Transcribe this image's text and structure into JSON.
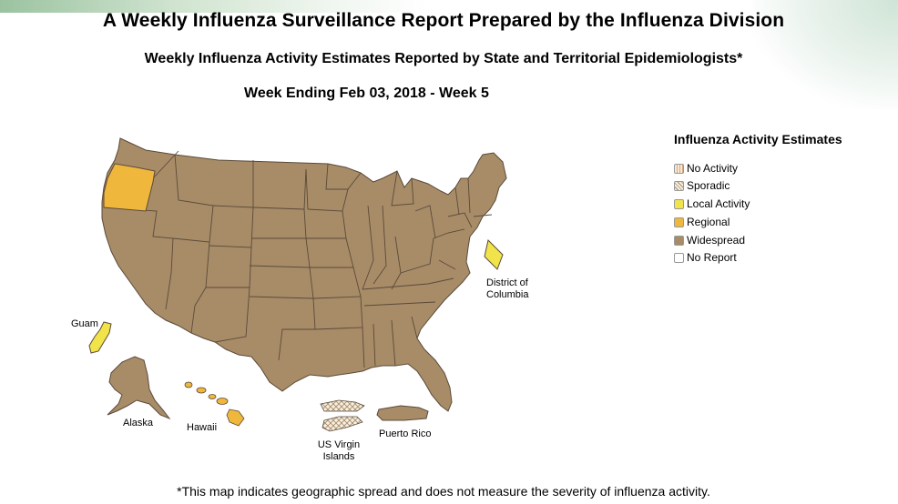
{
  "header": {
    "title": "A Weekly Influenza Surveillance Report Prepared by the Influenza Division",
    "subtitle": "Weekly Influenza Activity Estimates Reported by State and Territorial Epidemiologists*",
    "week": "Week Ending Feb 03, 2018 - Week 5"
  },
  "legend": {
    "title": "Influenza Activity Estimates",
    "items": [
      {
        "label": "No Activity",
        "color": "#f7e9d8",
        "pattern": "no-activity-hatch"
      },
      {
        "label": "Sporadic",
        "color": "#efe4d0",
        "pattern": "sporadic-crosshatch"
      },
      {
        "label": "Local Activity",
        "color": "#f0e44a",
        "pattern": "solid"
      },
      {
        "label": "Regional",
        "color": "#f0b73d",
        "pattern": "solid"
      },
      {
        "label": "Widespread",
        "color": "#a88c68",
        "pattern": "solid"
      },
      {
        "label": "No Report",
        "color": "#ffffff",
        "pattern": "solid"
      }
    ]
  },
  "map": {
    "colors": {
      "widespread": "#a88c68",
      "regional": "#f0b73d",
      "local": "#f0e44a",
      "border": "#5a4a38"
    },
    "regions": [
      {
        "name": "Oregon",
        "activity": "Regional"
      },
      {
        "name": "Hawaii",
        "activity": "Regional"
      },
      {
        "name": "Guam",
        "activity": "Local Activity"
      },
      {
        "name": "District of Columbia",
        "activity": "Local Activity"
      },
      {
        "name": "US Virgin Islands",
        "activity": "Sporadic"
      },
      {
        "name": "Puerto Rico",
        "activity": "Widespread"
      },
      {
        "name": "Alaska",
        "activity": "Widespread"
      },
      {
        "name": "Continental US (other states)",
        "activity": "Widespread"
      }
    ],
    "labels": {
      "guam": "Guam",
      "alaska": "Alaska",
      "hawaii": "Hawaii",
      "usvi_line1": "US Virgin",
      "usvi_line2": "Islands",
      "puerto_rico": "Puerto Rico",
      "dc_line1": "District of",
      "dc_line2": "Columbia"
    }
  },
  "footnote": "*This map indicates geographic spread and does not measure the severity of influenza activity."
}
